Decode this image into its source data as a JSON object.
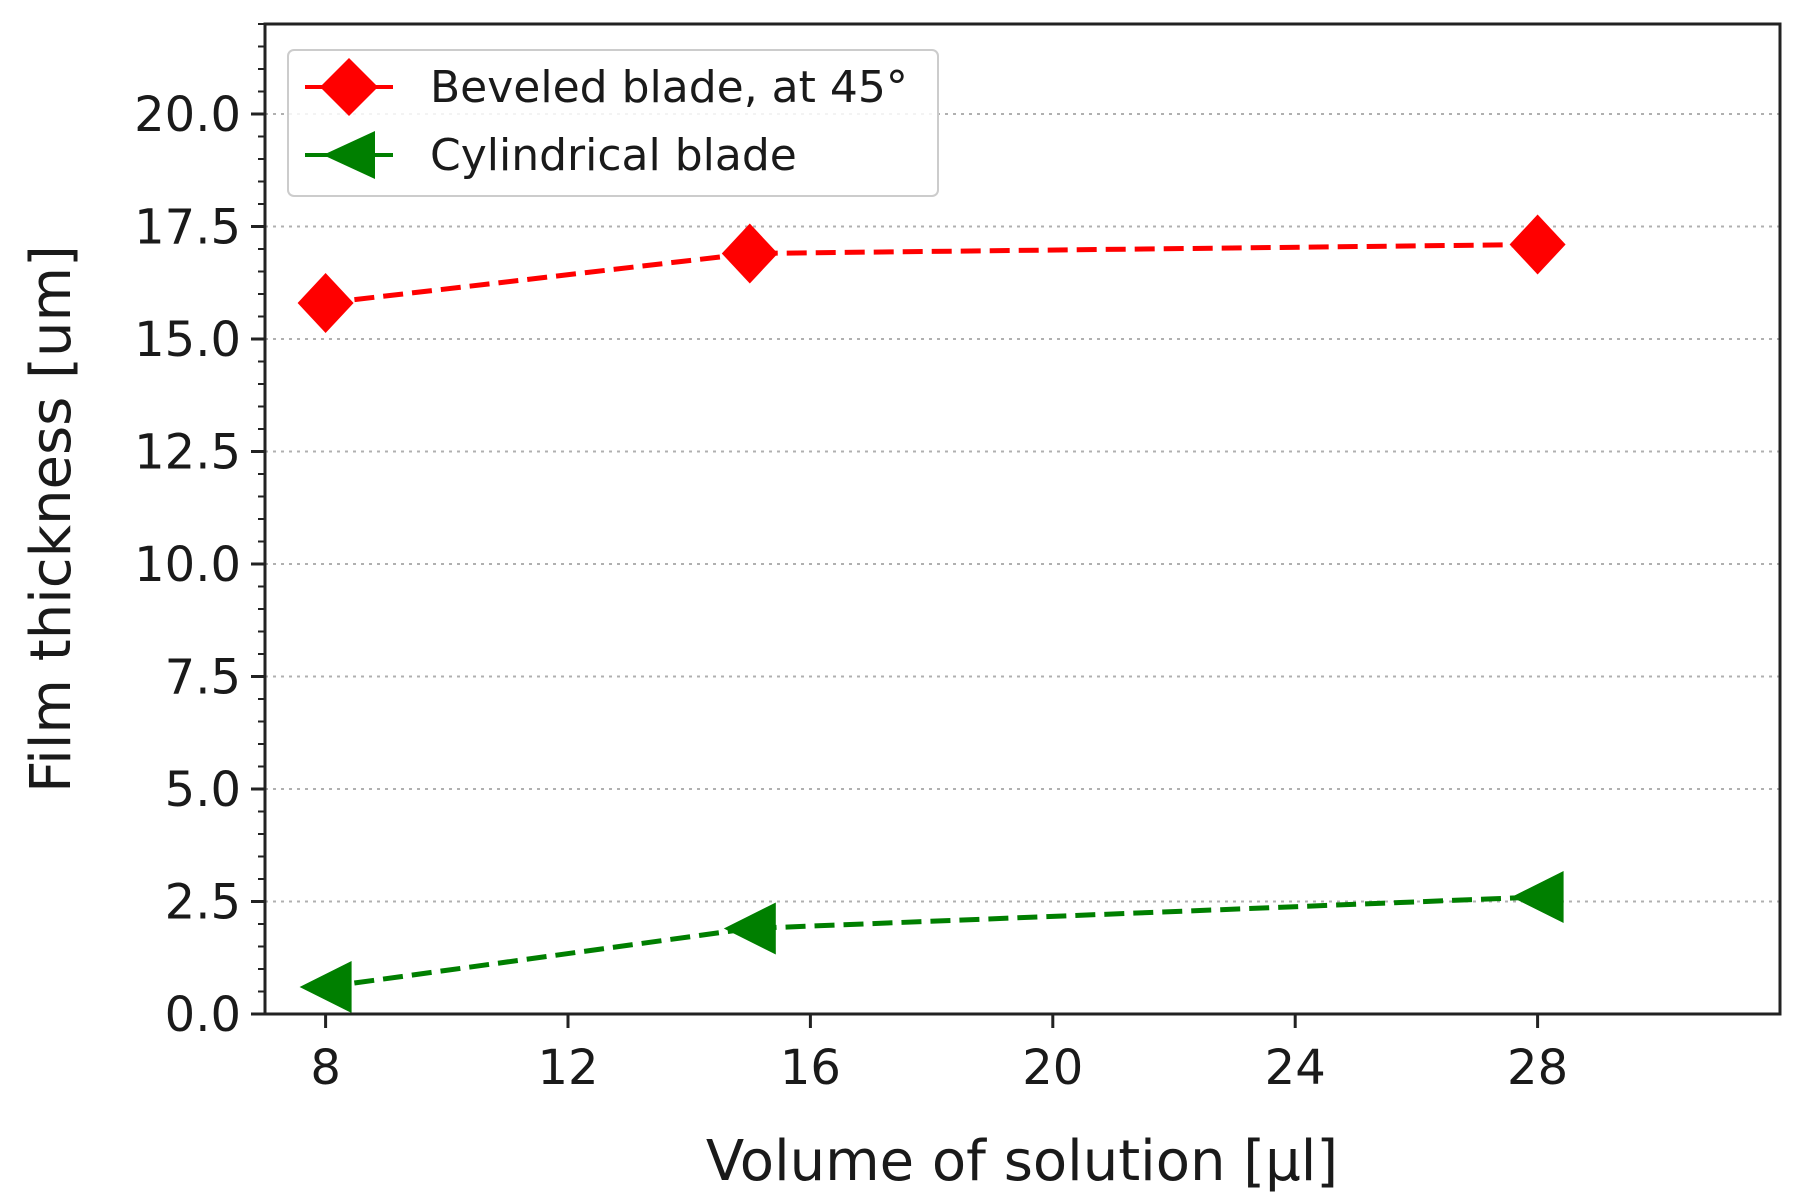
{
  "chart_data": {
    "type": "line",
    "xlabel": "Volume of solution [μl]",
    "ylabel": "Film thickness [um]",
    "xlim": [
      7,
      32
    ],
    "ylim": [
      0,
      22
    ],
    "xticks": [
      8,
      12,
      16,
      20,
      24,
      28
    ],
    "xtick_labels": [
      "8",
      "12",
      "16",
      "20",
      "24",
      "28"
    ],
    "yticks": [
      0,
      2.5,
      5,
      7.5,
      10,
      12.5,
      15,
      17.5,
      20
    ],
    "ytick_labels": [
      "0.0",
      "2.5",
      "5.0",
      "7.5",
      "10.0",
      "12.5",
      "15.0",
      "17.5",
      "20.0"
    ],
    "grid": "horizontal dotted",
    "legend_position": "top-left",
    "series": [
      {
        "name": "Beveled blade, at 45°",
        "color": "#ff0000",
        "marker": "diamond",
        "line_style": "dashed",
        "x": [
          8,
          15,
          28
        ],
        "y": [
          15.8,
          16.9,
          17.1
        ]
      },
      {
        "name": "Cylindrical blade",
        "color": "#007f00",
        "marker": "triangle-left",
        "line_style": "dashed",
        "x": [
          8,
          15,
          28
        ],
        "y": [
          0.6,
          1.9,
          2.6
        ]
      }
    ]
  }
}
